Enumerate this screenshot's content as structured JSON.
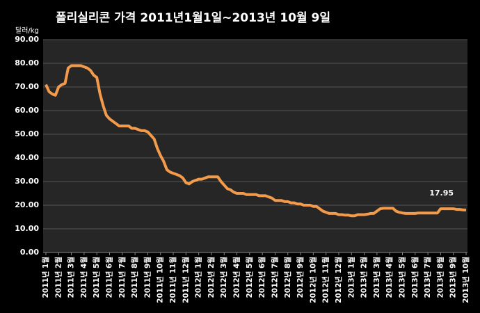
{
  "chart_data": {
    "type": "line",
    "title": "폴리실리콘 가격   2011년1월1일~2013년 10월 9일",
    "y_label": "달러/kg",
    "categories": [
      "2011년 1월",
      null,
      null,
      null,
      "2011년 2월",
      null,
      null,
      null,
      "2011년 3월",
      null,
      null,
      null,
      "2011년 4월",
      null,
      null,
      null,
      "2011년 5월",
      null,
      null,
      null,
      "2011년 6월",
      null,
      null,
      null,
      "2011년 7월",
      null,
      null,
      null,
      "2011년 8월",
      null,
      null,
      null,
      "2011년 9월",
      null,
      null,
      null,
      "2011년 10월",
      null,
      null,
      null,
      "2011년 11월",
      null,
      null,
      null,
      "2011년 12월",
      null,
      null,
      null,
      "2012년 1월",
      null,
      null,
      null,
      "2012년 2월",
      null,
      null,
      null,
      "2012년 3월",
      null,
      null,
      null,
      "2012년 4월",
      null,
      null,
      null,
      "2012년 5월",
      null,
      null,
      null,
      "2012년 6월",
      null,
      null,
      null,
      "2012년 7월",
      null,
      null,
      null,
      "2012년 8월",
      null,
      null,
      null,
      "2012년 9월",
      null,
      null,
      null,
      "2012년 10월",
      null,
      null,
      null,
      "2012년 11월",
      null,
      null,
      null,
      "2012년 12월",
      null,
      null,
      null,
      "2013년 1월",
      null,
      null,
      null,
      "2013년 2월",
      null,
      null,
      null,
      "2013년 3월",
      null,
      null,
      null,
      "2013년 4월",
      null,
      null,
      null,
      "2013년 5월",
      null,
      null,
      null,
      "2013년 6월",
      null,
      null,
      null,
      "2013년 7월",
      null,
      null,
      null,
      "2013년 8월",
      null,
      null,
      null,
      "2013년 9월",
      null,
      null,
      null,
      "2013년 10월"
    ],
    "values": [
      71,
      68,
      67,
      66.5,
      70,
      71,
      71.5,
      78,
      79,
      79,
      79,
      79,
      78.5,
      78,
      77,
      75,
      74,
      67,
      62,
      58,
      56.5,
      55.5,
      54.5,
      53.5,
      53.5,
      53.5,
      53.5,
      52.5,
      52.5,
      52,
      51.5,
      51.5,
      51,
      49.5,
      48,
      44,
      41,
      38.5,
      35,
      34,
      33.5,
      33,
      32.5,
      31.5,
      29.5,
      29,
      30,
      30.5,
      31,
      31,
      31.5,
      32,
      32,
      32,
      32,
      30,
      28.5,
      27,
      26.5,
      25.5,
      25,
      25,
      25,
      24.5,
      24.5,
      24.5,
      24.5,
      24,
      24,
      24,
      23.5,
      23,
      22,
      22,
      22,
      21.5,
      21.5,
      21,
      21,
      20.5,
      20.5,
      20,
      20,
      20,
      19.5,
      19.5,
      18.5,
      17.5,
      17,
      16.5,
      16.5,
      16.5,
      16,
      16,
      15.8,
      15.8,
      15.5,
      15.5,
      16,
      16,
      16,
      16.2,
      16.5,
      16.5,
      17.5,
      18.5,
      18.7,
      18.7,
      18.7,
      18.7,
      17.5,
      17,
      16.7,
      16.5,
      16.5,
      16.5,
      16.5,
      16.7,
      16.7,
      16.7,
      16.7,
      16.7,
      16.7,
      16.7,
      18.5,
      18.5,
      18.5,
      18.5,
      18.5,
      18.2,
      18.2,
      18,
      17.95
    ],
    "color": "#f39a4b",
    "ylim": [
      0,
      90
    ],
    "yticks": [
      {
        "value": 0,
        "label": "0.00"
      },
      {
        "value": 10,
        "label": "10.00"
      },
      {
        "value": 20,
        "label": "20.00"
      },
      {
        "value": 30,
        "label": "30.00"
      },
      {
        "value": 40,
        "label": "40.00"
      },
      {
        "value": 50,
        "label": "50.00"
      },
      {
        "value": 60,
        "label": "60.00"
      },
      {
        "value": 70,
        "label": "70.00"
      },
      {
        "value": 80,
        "label": "80.00"
      },
      {
        "value": 90,
        "label": "90.00"
      }
    ],
    "grid": true
  }
}
